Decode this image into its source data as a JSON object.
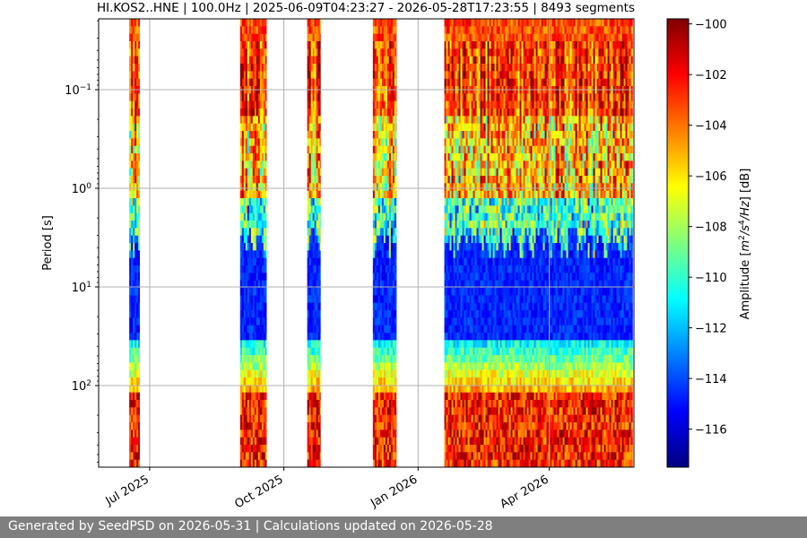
{
  "chart_data": {
    "type": "heatmap",
    "title": "HI.KOS2..HNE | 100.0Hz | 2025-06-09T04:23:27 - 2026-05-28T17:23:55 | 8493 segments",
    "ylabel": "Period [s]",
    "y_scale": "log",
    "y_ticks": [
      {
        "value": 0.1,
        "base": "10",
        "exp": "−1"
      },
      {
        "value": 1,
        "base": "10",
        "exp": "0"
      },
      {
        "value": 10,
        "base": "10",
        "exp": "1"
      },
      {
        "value": 100,
        "base": "10",
        "exp": "2"
      }
    ],
    "x_ticks": [
      {
        "date": "2025-07-01",
        "label": "Jul 2025"
      },
      {
        "date": "2025-10-01",
        "label": "Oct 2025"
      },
      {
        "date": "2026-01-01",
        "label": "Jan 2026"
      },
      {
        "date": "2026-04-01",
        "label": "Apr 2026"
      }
    ],
    "x_range": [
      "2025-06-09",
      "2026-05-28"
    ],
    "data_intervals": [
      [
        "2025-06-17",
        "2025-06-24"
      ],
      [
        "2025-09-01",
        "2025-09-19"
      ],
      [
        "2025-10-17",
        "2025-10-26"
      ],
      [
        "2025-12-01",
        "2025-12-17"
      ],
      [
        "2026-01-19",
        "2026-05-28"
      ]
    ],
    "grid": true,
    "colormap": "jet",
    "colorbar": {
      "label": "Amplitude [m²/s⁴/Hz] [dB]",
      "vmin": -117.5,
      "vmax": -99.8,
      "ticks": [
        -100,
        -102,
        -104,
        -106,
        -108,
        -110,
        -112,
        -114,
        -116
      ]
    }
  },
  "footer": {
    "text": "Generated by SeedPSD on 2026-05-31 | Calculations updated on 2026-05-28",
    "background": "#7f7f7f"
  }
}
